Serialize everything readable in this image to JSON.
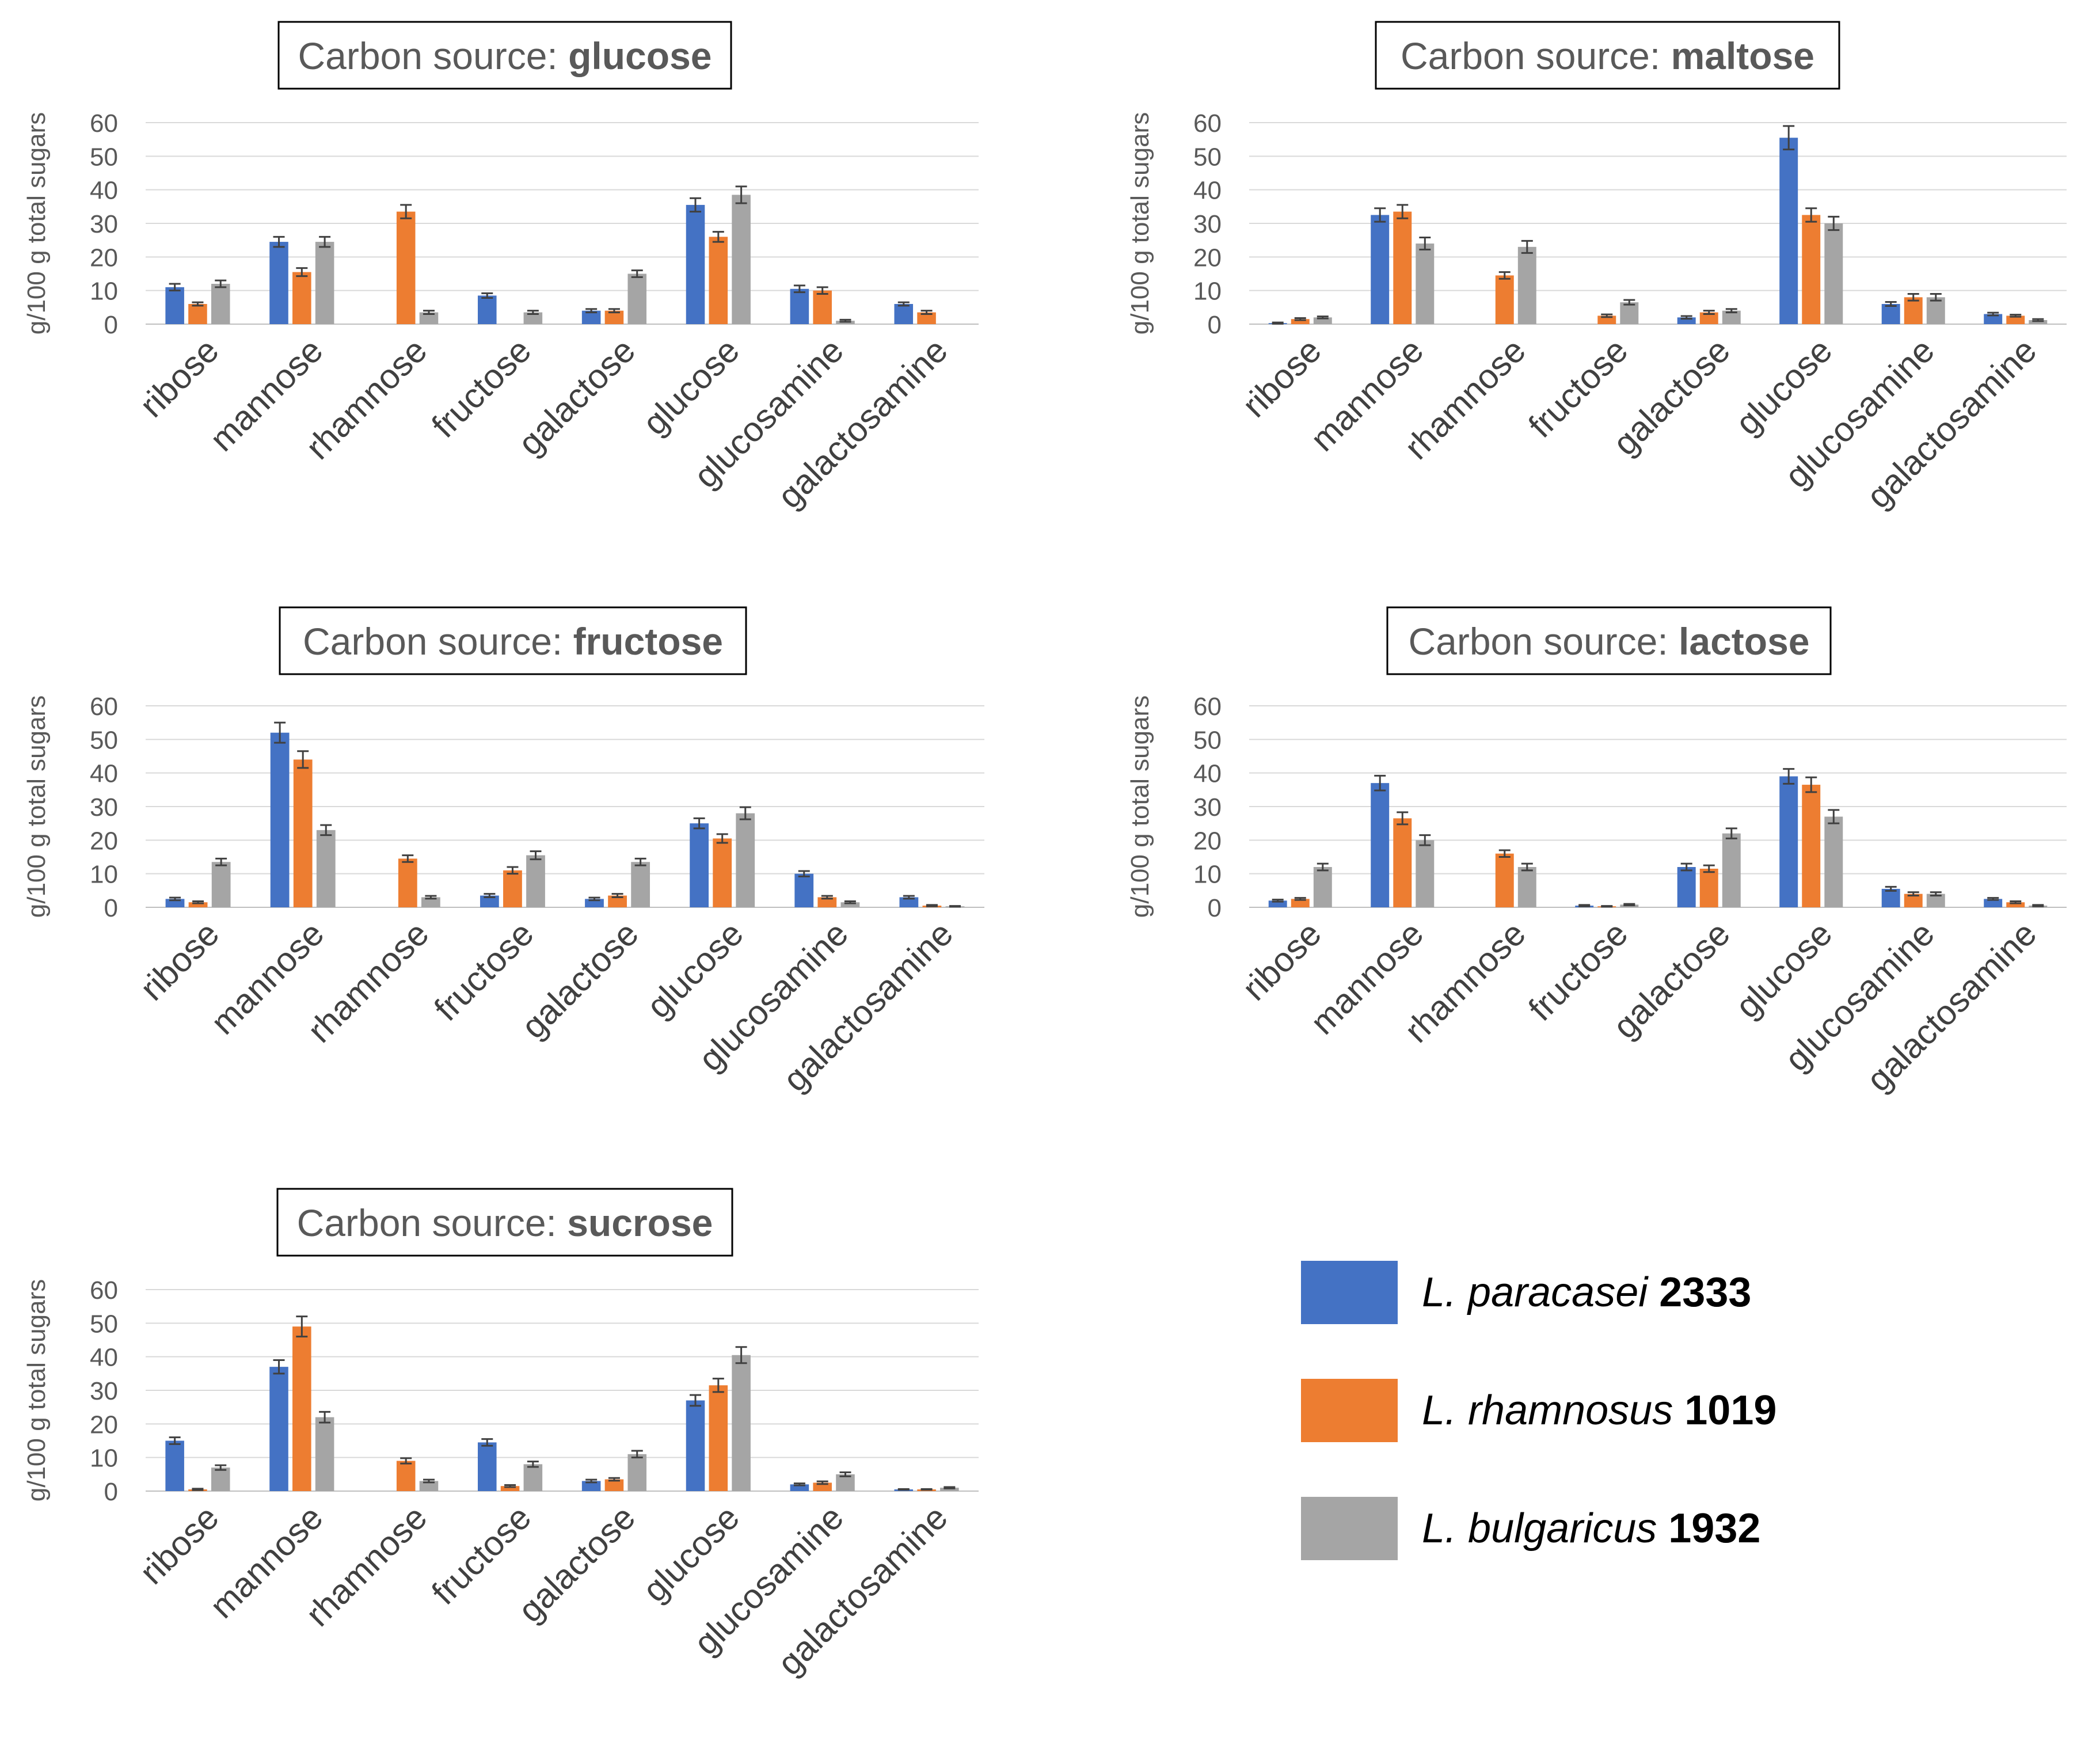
{
  "chart_data": [
    {
      "type": "bar",
      "title_prefix": "Carbon source: ",
      "title_bold": "glucose",
      "ylabel": "g/100 g total sugars",
      "ylim": [
        0,
        60
      ],
      "yticks": [
        0,
        10,
        20,
        30,
        40,
        50,
        60
      ],
      "categories": [
        "ribose",
        "mannose",
        "rhamnose",
        "fructose",
        "galactose",
        "glucose",
        "glucosamine",
        "galactosamine"
      ],
      "series": [
        {
          "name": "L. paracasei 2333",
          "values": [
            11,
            24.5,
            0,
            8.5,
            4,
            35.5,
            10.5,
            6
          ],
          "errors": [
            1,
            1.5,
            0,
            0.7,
            0.5,
            2,
            1,
            0.5
          ]
        },
        {
          "name": "L. rhamnosus 1019",
          "values": [
            6,
            15.5,
            33.5,
            0,
            4,
            26,
            10,
            3.5
          ],
          "errors": [
            0.5,
            1.2,
            2,
            0,
            0.5,
            1.5,
            1,
            0.5
          ]
        },
        {
          "name": "L. bulgaricus 1932",
          "values": [
            12,
            24.5,
            3.5,
            3.5,
            15,
            38.5,
            1,
            0
          ],
          "errors": [
            1,
            1.5,
            0.5,
            0.5,
            1,
            2.5,
            0.3,
            0
          ]
        }
      ]
    },
    {
      "type": "bar",
      "title_prefix": "Carbon source: ",
      "title_bold": "maltose",
      "ylabel": "g/100 g total sugars",
      "ylim": [
        0,
        60
      ],
      "yticks": [
        0,
        10,
        20,
        30,
        40,
        50,
        60
      ],
      "categories": [
        "ribose",
        "mannose",
        "rhamnose",
        "fructose",
        "galactose",
        "glucose",
        "glucosamine",
        "galactosamine"
      ],
      "series": [
        {
          "name": "L. paracasei 2333",
          "values": [
            0.3,
            32.5,
            0,
            0,
            2,
            55.5,
            6,
            3
          ],
          "errors": [
            0.2,
            2,
            0,
            0,
            0.4,
            3.5,
            0.6,
            0.4
          ]
        },
        {
          "name": "L. rhamnosus 1019",
          "values": [
            1.5,
            33.5,
            14.5,
            2.5,
            3.5,
            32.5,
            8,
            2.5
          ],
          "errors": [
            0.3,
            2,
            1,
            0.4,
            0.5,
            2,
            1,
            0.3
          ]
        },
        {
          "name": "L. bulgaricus 1932",
          "values": [
            2,
            24,
            23,
            6.5,
            4,
            30,
            8,
            1.2
          ],
          "errors": [
            0.3,
            1.8,
            1.8,
            0.7,
            0.5,
            2,
            1,
            0.3
          ]
        }
      ]
    },
    {
      "type": "bar",
      "title_prefix": "Carbon source: ",
      "title_bold": "fructose",
      "ylabel": "g/100 g total sugars",
      "ylim": [
        0,
        60
      ],
      "yticks": [
        0,
        10,
        20,
        30,
        40,
        50,
        60
      ],
      "categories": [
        "ribose",
        "mannose",
        "rhamnose",
        "fructose",
        "galactose",
        "glucose",
        "glucosamine",
        "galactosamine"
      ],
      "series": [
        {
          "name": "L. paracasei 2333",
          "values": [
            2.5,
            52,
            0,
            3.5,
            2.5,
            25,
            10,
            3
          ],
          "errors": [
            0.4,
            3,
            0,
            0.5,
            0.4,
            1.5,
            0.8,
            0.4
          ]
        },
        {
          "name": "L. rhamnosus 1019",
          "values": [
            1.5,
            44,
            14.5,
            11,
            3.5,
            20.5,
            3,
            0.5
          ],
          "errors": [
            0.3,
            2.5,
            1,
            1,
            0.5,
            1.3,
            0.4,
            0.2
          ]
        },
        {
          "name": "L. bulgaricus 1932",
          "values": [
            13.5,
            23,
            3,
            15.5,
            13.5,
            28,
            1.5,
            0.3
          ],
          "errors": [
            1,
            1.5,
            0.4,
            1.2,
            1,
            1.8,
            0.3,
            0.1
          ]
        }
      ]
    },
    {
      "type": "bar",
      "title_prefix": "Carbon source: ",
      "title_bold": "lactose",
      "ylabel": "g/100 g total sugars",
      "ylim": [
        0,
        60
      ],
      "yticks": [
        0,
        10,
        20,
        30,
        40,
        50,
        60
      ],
      "categories": [
        "ribose",
        "mannose",
        "rhamnose",
        "fructose",
        "galactose",
        "glucose",
        "glucosamine",
        "galactosamine"
      ],
      "series": [
        {
          "name": "L. paracasei 2333",
          "values": [
            2,
            37,
            0,
            0.5,
            12,
            39,
            5.5,
            2.5
          ],
          "errors": [
            0.3,
            2.2,
            0,
            0.2,
            1,
            2.2,
            0.6,
            0.3
          ]
        },
        {
          "name": "L. rhamnosus 1019",
          "values": [
            2.5,
            26.5,
            16,
            0.3,
            11.5,
            36.5,
            4,
            1.5
          ],
          "errors": [
            0.3,
            1.8,
            1,
            0.1,
            1,
            2.2,
            0.5,
            0.3
          ]
        },
        {
          "name": "L. bulgaricus 1932",
          "values": [
            12,
            20,
            12,
            0.8,
            22,
            27,
            4,
            0.5
          ],
          "errors": [
            1,
            1.5,
            1,
            0.2,
            1.5,
            2,
            0.5,
            0.2
          ]
        }
      ]
    },
    {
      "type": "bar",
      "title_prefix": "Carbon source: ",
      "title_bold": "sucrose",
      "ylabel": "g/100 g total sugars",
      "ylim": [
        0,
        60
      ],
      "yticks": [
        0,
        10,
        20,
        30,
        40,
        50,
        60
      ],
      "categories": [
        "ribose",
        "mannose",
        "rhamnose",
        "fructose",
        "galactose",
        "glucose",
        "glucosamine",
        "galactosamine"
      ],
      "series": [
        {
          "name": "L. paracasei 2333",
          "values": [
            15,
            37,
            0,
            14.5,
            3,
            27,
            2,
            0.5
          ],
          "errors": [
            1,
            2,
            0,
            1,
            0.4,
            1.6,
            0.3,
            0.1
          ]
        },
        {
          "name": "L. rhamnosus 1019",
          "values": [
            0.5,
            49,
            9,
            1.5,
            3.5,
            31.5,
            2.5,
            0.5
          ],
          "errors": [
            0.2,
            3,
            0.8,
            0.3,
            0.4,
            2,
            0.4,
            0.1
          ]
        },
        {
          "name": "L. bulgaricus 1932",
          "values": [
            7,
            22,
            3,
            8,
            11,
            40.5,
            5,
            1
          ],
          "errors": [
            0.7,
            1.6,
            0.4,
            0.8,
            1,
            2.4,
            0.6,
            0.2
          ]
        }
      ]
    }
  ],
  "legend": [
    {
      "species": "L. paracasei",
      "strain": "2333",
      "color": "#4472c4"
    },
    {
      "species": "L. rhamnosus",
      "strain": "1019",
      "color": "#ed7d31"
    },
    {
      "species": "L. bulgaricus",
      "strain": "1932",
      "color": "#a5a5a5"
    }
  ]
}
